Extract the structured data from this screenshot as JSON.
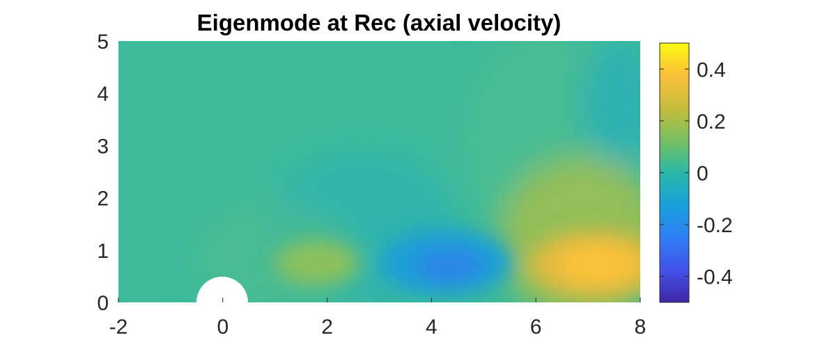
{
  "chart_data": {
    "type": "heatmap",
    "title": "Eigenmode at Rec (axial velocity)",
    "xlabel": "",
    "ylabel": "",
    "xlim": [
      -2,
      8
    ],
    "ylim": [
      0,
      5
    ],
    "x_ticks": [
      "-2",
      "0",
      "2",
      "4",
      "6",
      "8"
    ],
    "y_ticks": [
      "0",
      "1",
      "2",
      "3",
      "4",
      "5"
    ],
    "colorbar": {
      "clim": [
        -0.5,
        0.5
      ],
      "ticks": [
        "-0.4",
        "-0.2",
        "0",
        "0.2",
        "0.4"
      ],
      "tick_values": [
        -0.4,
        -0.2,
        0,
        0.2,
        0.4
      ],
      "colormap": "parula"
    },
    "background_value": 0.0,
    "features": [
      {
        "kind": "positive lobe",
        "x": 1.8,
        "y": 0.75,
        "value": 0.1
      },
      {
        "kind": "negative lobe",
        "x": 4.3,
        "y": 0.7,
        "value": -0.22
      },
      {
        "kind": "positive lobe",
        "x": 7.2,
        "y": 0.7,
        "value": 0.3
      },
      {
        "kind": "negative patch",
        "x": 7.8,
        "y": 3.8,
        "value": -0.05
      }
    ],
    "obstacle": {
      "shape": "half-disk",
      "center_x": 0,
      "center_y": 0,
      "radius": 0.5,
      "color": "#ffffff"
    }
  }
}
